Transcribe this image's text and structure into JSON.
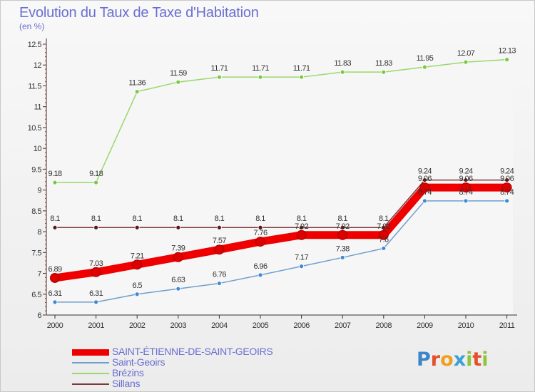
{
  "title": "Evolution du Taux de Taxe d'Habitation",
  "subtitle": "(en %)",
  "brand": "Proxiti",
  "chart_data": {
    "type": "line",
    "x": [
      "2000",
      "2001",
      "2002",
      "2003",
      "2004",
      "2005",
      "2006",
      "2007",
      "2008",
      "2009",
      "2010",
      "2011"
    ],
    "ylim": [
      6,
      12.5
    ],
    "yticks": [
      "6",
      "6.5",
      "7",
      "7.5",
      "8",
      "8.5",
      "9",
      "9.5",
      "10",
      "10.5",
      "11",
      "11.5",
      "12",
      "12.5"
    ],
    "grid": false,
    "legend_position": "bottom-left",
    "series": [
      {
        "name": "SAINT-ÉTIENNE-DE-SAINT-GEOIRS",
        "color": "#ee0000",
        "marker": "#ee0000",
        "values": [
          6.89,
          7.03,
          7.21,
          7.39,
          7.57,
          7.76,
          7.92,
          7.92,
          7.92,
          9.06,
          9.06,
          9.06
        ],
        "labels": [
          "6.89",
          "7.03",
          "7.21",
          "7.39",
          "7.57",
          "7.76",
          "7.92",
          "7.92",
          "7.92",
          "9.06",
          "9.06",
          "9.06"
        ]
      },
      {
        "name": "Saint-Geoirs",
        "color": "#6f9fcc",
        "marker": "#3f8ad0",
        "values": [
          6.31,
          6.31,
          6.5,
          6.63,
          6.76,
          6.96,
          7.17,
          7.38,
          7.6,
          8.74,
          8.74,
          8.74
        ],
        "labels": [
          "6.31",
          "6.31",
          "6.5",
          "6.63",
          "6.76",
          "6.96",
          "7.17",
          "7.38",
          "7.6",
          "8.74",
          "8.74",
          "8.74"
        ]
      },
      {
        "name": "Brézins",
        "color": "#9ad86a",
        "marker": "#7ac943",
        "values": [
          9.18,
          9.18,
          11.36,
          11.59,
          11.71,
          11.71,
          11.71,
          11.83,
          11.83,
          11.95,
          12.07,
          12.13
        ],
        "labels": [
          "9.18",
          "9.18",
          "11.36",
          "11.59",
          "11.71",
          "11.71",
          "11.71",
          "11.83",
          "11.83",
          "11.95",
          "12.07",
          "12.13"
        ]
      },
      {
        "name": "Sillans",
        "color": "#7a3a3a",
        "marker": "#5a1a1a",
        "values": [
          8.1,
          8.1,
          8.1,
          8.1,
          8.1,
          8.1,
          8.1,
          8.1,
          8.1,
          9.24,
          9.24,
          9.24
        ],
        "labels": [
          "8.1",
          "8.1",
          "8.1",
          "8.1",
          "8.1",
          "8.1",
          "8.1",
          "8.1",
          "8.1",
          "9.24",
          "9.24",
          "9.24"
        ]
      }
    ]
  }
}
